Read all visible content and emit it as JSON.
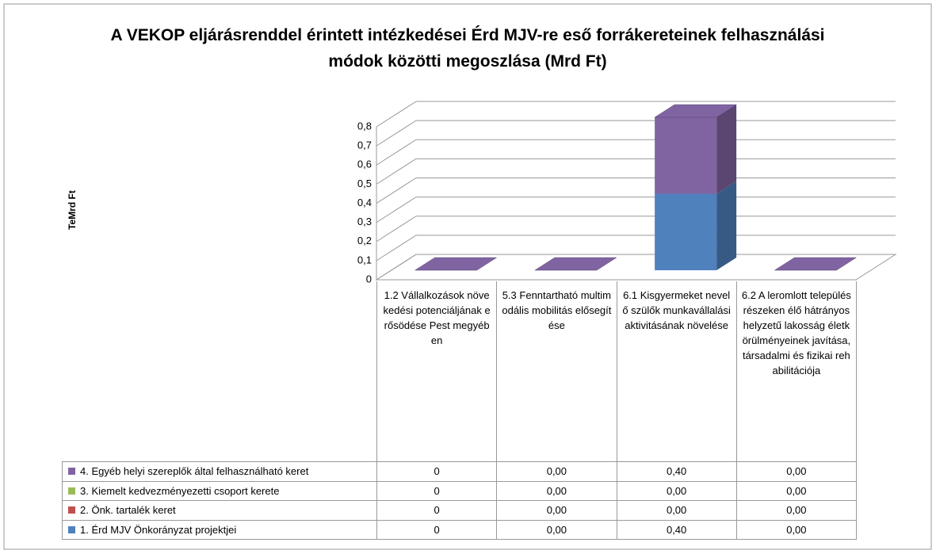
{
  "chart_data": {
    "type": "bar3d_stacked",
    "title": "A VEKOP eljárásrenddel érintett intézkedései Érd MJV-re eső forrákereteinek felhasználási módok közötti megoszlása (Mrd Ft)",
    "y_label": "TeMrd Ft",
    "categories": [
      "1.2 Vállalkozások növekedési potenciáljának erősödése Pest megyében",
      "5.3 Fenntartható multimodális mobilitás elősegítése",
      "6.1 Kisgyermeket nevelő szülők munkavállalási aktivitásának növelése",
      "6.2 A leromlott településrészeken élő hátrányos helyzetű lakosság életkörülményeinek javítása, társadalmi és fizikai rehabilitációja"
    ],
    "series": [
      {
        "name": "1. Érd MJV Önkorányzat projektjei",
        "color": "#4f81bd",
        "values": [
          0,
          0,
          0.4,
          0
        ],
        "value_labels": [
          "0",
          "0,00",
          "0,40",
          "0,00"
        ]
      },
      {
        "name": "2. Önk. tartalék keret",
        "color": "#c0504d",
        "values": [
          0,
          0,
          0,
          0
        ],
        "value_labels": [
          "0",
          "0,00",
          "0,00",
          "0,00"
        ]
      },
      {
        "name": "3. Kiemelt kedvezményezetti csoport kerete",
        "color": "#9bbb59",
        "values": [
          0,
          0,
          0,
          0
        ],
        "value_labels": [
          "0",
          "0,00",
          "0,00",
          "0,00"
        ]
      },
      {
        "name": "4. Egyéb helyi szereplők által felhasználható keret",
        "color": "#8064a2",
        "values": [
          0,
          0,
          0.4,
          0
        ],
        "value_labels": [
          "0",
          "0,00",
          "0,40",
          "0,00"
        ]
      }
    ],
    "ylim": [
      0,
      0.8
    ],
    "yticks": [
      0,
      {
        "value": 0.1,
        "label": "0,1"
      },
      {
        "value": 0.2,
        "label": "0,2"
      },
      {
        "value": 0.3,
        "label": "0,3"
      },
      {
        "value": 0.4,
        "label": "0,4"
      },
      {
        "value": 0.5,
        "label": "0,5"
      },
      {
        "value": 0.6,
        "label": "0,6"
      },
      {
        "value": 0.7,
        "label": "0,7"
      },
      {
        "value": 0.8,
        "label": "0,8"
      }
    ],
    "grid": true
  }
}
